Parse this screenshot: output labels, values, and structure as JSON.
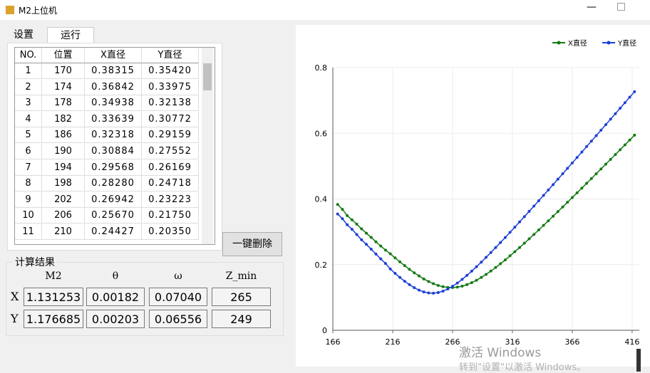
{
  "window": {
    "title": "M2上位机"
  },
  "tabs": [
    "设置",
    "运行"
  ],
  "table": {
    "headers": [
      "NO.",
      "位置",
      "X直径",
      "Y直径"
    ],
    "rows": [
      [
        "1",
        "170",
        "0.38315",
        "0.35420"
      ],
      [
        "2",
        "174",
        "0.36842",
        "0.33975"
      ],
      [
        "3",
        "178",
        "0.34938",
        "0.32138"
      ],
      [
        "4",
        "182",
        "0.33639",
        "0.30772"
      ],
      [
        "5",
        "186",
        "0.32318",
        "0.29159"
      ],
      [
        "6",
        "190",
        "0.30884",
        "0.27552"
      ],
      [
        "7",
        "194",
        "0.29568",
        "0.26169"
      ],
      [
        "8",
        "198",
        "0.28280",
        "0.24718"
      ],
      [
        "9",
        "202",
        "0.26942",
        "0.23223"
      ],
      [
        "10",
        "206",
        "0.25670",
        "0.21750"
      ],
      [
        "11",
        "210",
        "0.24427",
        "0.20350"
      ]
    ]
  },
  "button": "一键删除",
  "results": {
    "title": "计算结果",
    "headers": [
      "M2",
      "θ",
      "ω",
      "Z_min"
    ],
    "rows": [
      {
        "label": "X",
        "cells": [
          "1.131253",
          "0.00182",
          "0.07040",
          "265"
        ]
      },
      {
        "label": "Y",
        "cells": [
          "1.176685",
          "0.00203",
          "0.06556",
          "249"
        ]
      }
    ]
  },
  "watermark": {
    "line1": "激活 Windows",
    "line2": "转到\"设置\"以激活 Windows。"
  },
  "chart_data": {
    "type": "line",
    "grid": true,
    "legend": "top-right",
    "x": [
      170,
      174,
      178,
      182,
      186,
      190,
      194,
      198,
      202,
      206,
      210,
      214,
      218,
      222,
      226,
      230,
      234,
      238,
      242,
      246,
      250,
      254,
      258,
      262,
      266,
      270,
      274,
      278,
      282,
      286,
      290,
      294,
      298,
      302,
      306,
      310,
      314,
      318,
      322,
      326,
      330,
      334,
      338,
      342,
      346,
      350,
      354,
      358,
      362,
      366,
      370,
      374,
      378,
      382,
      386,
      390,
      394,
      398,
      402,
      406,
      410,
      414,
      418
    ],
    "xlim": [
      166,
      422
    ],
    "xticks": [
      166,
      216,
      266,
      316,
      366,
      416
    ],
    "ylim": [
      0,
      0.8
    ],
    "yticks": [
      0,
      0.2,
      0.4,
      0.6,
      0.8
    ],
    "series": [
      {
        "name": "X直径",
        "color": "#137a13",
        "values": [
          0.38315,
          0.36842,
          0.34938,
          0.33639,
          0.32318,
          0.30884,
          0.29568,
          0.2828,
          0.26942,
          0.2567,
          0.24427,
          0.233,
          0.2205,
          0.2085,
          0.1969,
          0.1857,
          0.1752,
          0.1655,
          0.1565,
          0.1486,
          0.1419,
          0.1365,
          0.1327,
          0.1305,
          0.13,
          0.1314,
          0.1344,
          0.139,
          0.1451,
          0.1524,
          0.1609,
          0.1702,
          0.1804,
          0.1912,
          0.2026,
          0.2144,
          0.2267,
          0.2393,
          0.2521,
          0.2652,
          0.2785,
          0.292,
          0.3057,
          0.3195,
          0.3334,
          0.3474,
          0.3615,
          0.3757,
          0.3899,
          0.4043,
          0.4186,
          0.4331,
          0.4476,
          0.4621,
          0.4767,
          0.4913,
          0.5059,
          0.5206,
          0.5353,
          0.55,
          0.5647,
          0.5795,
          0.5943
        ]
      },
      {
        "name": "Y直径",
        "color": "#1d3fd6",
        "values": [
          0.3542,
          0.33975,
          0.32138,
          0.30772,
          0.29159,
          0.27552,
          0.26169,
          0.24718,
          0.23223,
          0.2175,
          0.2035,
          0.1868,
          0.1735,
          0.161,
          0.1494,
          0.1389,
          0.1297,
          0.1223,
          0.1168,
          0.1137,
          0.1131,
          0.115,
          0.1193,
          0.1258,
          0.1341,
          0.144,
          0.1551,
          0.1672,
          0.1801,
          0.1936,
          0.2076,
          0.2221,
          0.2368,
          0.2519,
          0.2672,
          0.2827,
          0.2983,
          0.3142,
          0.33,
          0.3461,
          0.3622,
          0.3784,
          0.3946,
          0.4109,
          0.4273,
          0.4437,
          0.4602,
          0.4766,
          0.4932,
          0.5097,
          0.5263,
          0.5429,
          0.5596,
          0.5762,
          0.5928,
          0.6095,
          0.6263,
          0.643,
          0.6597,
          0.6764,
          0.6933,
          0.71,
          0.7267
        ]
      }
    ]
  }
}
